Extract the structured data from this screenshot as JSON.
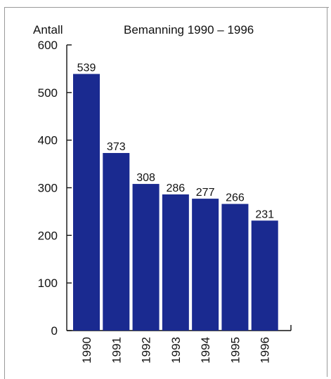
{
  "chart_data": {
    "type": "bar",
    "title": "Bemanning 1990 – 1996",
    "ylabel": "Antall",
    "xlabel": "",
    "categories": [
      "1990",
      "1991",
      "1992",
      "1993",
      "1994",
      "1995",
      "1996"
    ],
    "values": [
      539,
      373,
      308,
      286,
      277,
      266,
      231
    ],
    "data_labels": [
      "539",
      "373",
      "308",
      "286",
      "277",
      "266",
      "231"
    ],
    "ylim": [
      0,
      600
    ],
    "yticks": [
      0,
      100,
      200,
      300,
      400,
      500,
      600
    ],
    "ytick_labels": [
      "0",
      "100",
      "200",
      "300",
      "400",
      "500",
      "600"
    ],
    "grid": false,
    "legend": "none",
    "bar_color": "#1a2a90"
  }
}
